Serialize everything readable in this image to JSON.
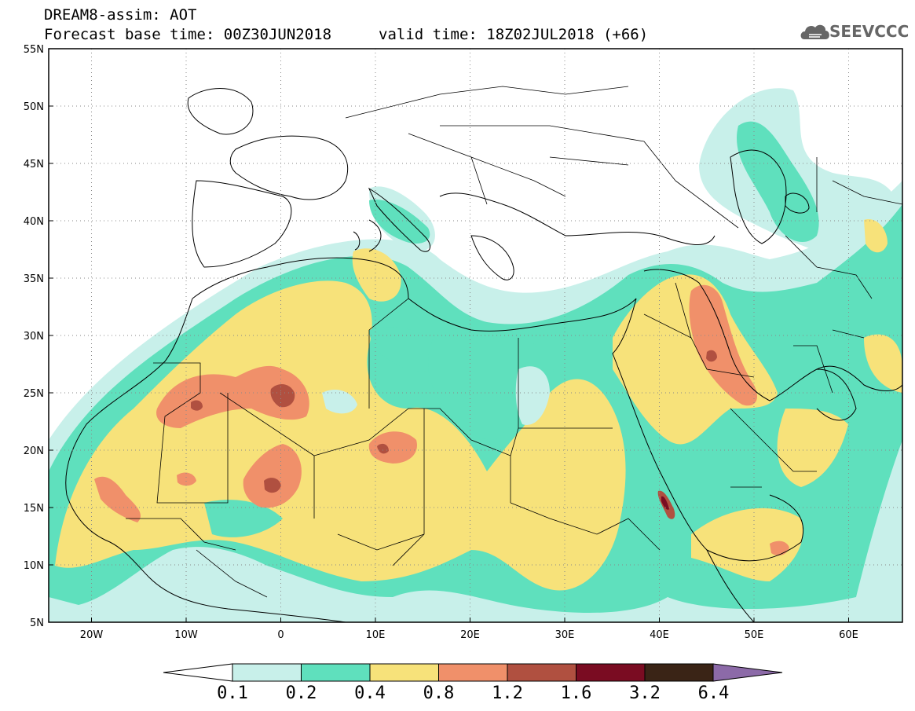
{
  "header": {
    "title": "DREAM8-assim: AOT",
    "base_time": "Forecast base time: 00Z30JUN2018",
    "valid_time": "valid time: 18Z02JUL2018 (+66)"
  },
  "logo": {
    "text": "SEEVCCC",
    "icon": "cloud-logo-icon"
  },
  "map": {
    "lat_ticks": [
      "55N",
      "50N",
      "45N",
      "40N",
      "35N",
      "30N",
      "25N",
      "20N",
      "15N",
      "10N",
      "5N"
    ],
    "lon_ticks": [
      "20W",
      "10W",
      "0",
      "10E",
      "20E",
      "30E",
      "40E",
      "50E",
      "60E"
    ]
  },
  "colorbar": {
    "labels": [
      "0.1",
      "0.2",
      "0.4",
      "0.8",
      "1.2",
      "1.6",
      "3.2",
      "6.4"
    ],
    "colors": [
      "#c8f0ea",
      "#5fe0bd",
      "#f7e27a",
      "#f0906a",
      "#b05040",
      "#7a0c22",
      "#3a2416",
      "#8c6aa8"
    ],
    "under_color": "#ffffff"
  }
}
